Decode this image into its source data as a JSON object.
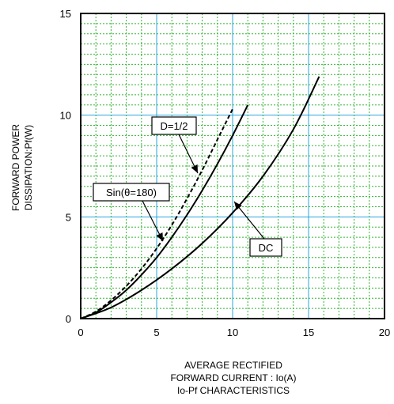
{
  "chart_data": {
    "type": "line",
    "xlabel_lines": [
      "AVERAGE RECTIFIED",
      "FORWARD CURRENT : Io(A)"
    ],
    "caption": "Io-Pf CHARACTERISTICS",
    "ylabel_lines": [
      "FORWARD POWER",
      "DISSIPATION:Pf(W)"
    ],
    "xlim": [
      0,
      20
    ],
    "ylim": [
      0,
      15
    ],
    "xticks": [
      "0",
      "5",
      "10",
      "15",
      "20"
    ],
    "yticks": [
      "0",
      "5",
      "10",
      "15"
    ],
    "grid": true,
    "series": [
      {
        "name": "Sin(θ=180)",
        "style": "dashed",
        "x": [
          0,
          1,
          2,
          3,
          4,
          5,
          6,
          7,
          8,
          9,
          10
        ],
        "y": [
          0,
          0.35,
          0.9,
          1.6,
          2.45,
          3.45,
          4.6,
          5.9,
          7.3,
          8.8,
          10.3
        ]
      },
      {
        "name": "D=1/2",
        "style": "solid",
        "x": [
          0,
          1,
          2,
          3,
          4,
          5,
          6,
          7,
          8,
          9,
          10,
          11
        ],
        "y": [
          0,
          0.3,
          0.8,
          1.4,
          2.15,
          3.0,
          4.0,
          5.1,
          6.3,
          7.6,
          9.0,
          10.5
        ]
      },
      {
        "name": "DC",
        "style": "solid",
        "x": [
          0,
          2,
          4,
          6,
          8,
          10,
          12,
          14,
          15.7
        ],
        "y": [
          0,
          0.55,
          1.4,
          2.45,
          3.7,
          5.2,
          7.0,
          9.3,
          11.9
        ]
      }
    ],
    "annotations": [
      {
        "text": "D=1/2",
        "series": "D=1/2"
      },
      {
        "text": "Sin(θ=180)",
        "series": "Sin(θ=180)"
      },
      {
        "text": "DC",
        "series": "DC"
      }
    ]
  }
}
